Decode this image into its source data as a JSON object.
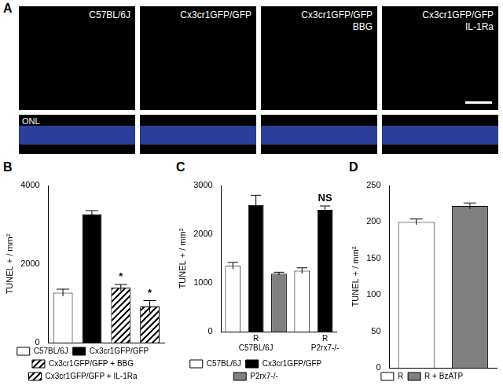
{
  "images": {
    "title": "A",
    "panels": [
      {
        "label": "C57BL/6J"
      },
      {
        "label": "Cx3cr1GFP/GFP"
      },
      {
        "label": "Cx3cr1GFP/GFP",
        "sublabel": "BBG"
      },
      {
        "label": "Cx3cr1GFP/GFP",
        "sublabel": "IL-1Ra"
      }
    ],
    "strip_label": "ONL"
  },
  "chart_data": [
    {
      "type": "bar",
      "title": "B",
      "y_label": "TUNEL + / mm²",
      "categories": [
        null,
        null,
        null,
        null
      ],
      "series": [
        {
          "name": "C57BL/6J",
          "color": "#ffffff",
          "values": [
            1270,
            null,
            null,
            null
          ],
          "errors": [
            90,
            null,
            null,
            null
          ]
        },
        {
          "name": "Cx3cr1GFP/GFP",
          "color": "#000000",
          "values": [
            null,
            3270,
            null,
            null
          ],
          "errors": [
            null,
            90,
            null,
            null
          ]
        },
        {
          "name": "Cx3cr1GFP/GFP + BBG",
          "color": "#000000",
          "marker": "hatch",
          "values": [
            null,
            null,
            1400,
            null
          ],
          "errors": [
            null,
            null,
            80,
            null
          ]
        },
        {
          "name": "Cx3cr1GFP/GFP + IL-1Ra",
          "color": "#000000",
          "marker": "hatch",
          "values": [
            null,
            null,
            null,
            920
          ],
          "errors": [
            null,
            null,
            null,
            150
          ]
        }
      ],
      "annotations": [
        null,
        null,
        "*",
        "*"
      ],
      "ylim": [
        0,
        4000
      ],
      "yticks": [
        0,
        2000,
        4000
      ],
      "grid": false,
      "legend": "bottom",
      "tick_labels": "y"
    },
    {
      "type": "bar",
      "title": "C",
      "y_label": "TUNEL + / mm²",
      "categories": [
        null,
        [
          "R",
          "C57BL/6J"
        ],
        null,
        null,
        [
          "R",
          "P2rx7-/-"
        ]
      ],
      "series": [
        {
          "name": "C57BL/6J",
          "color": "#ffffff",
          "values": [
            1350,
            null,
            null,
            1250,
            null
          ],
          "errors": [
            70,
            null,
            null,
            60,
            null
          ]
        },
        {
          "name": "Cx3cr1GFP/GFP",
          "color": "#000000",
          "values": [
            null,
            2600,
            null,
            null,
            2500
          ],
          "errors": [
            null,
            200,
            null,
            null,
            80
          ]
        },
        {
          "name": "P2rx7-/-",
          "color": "#808080",
          "values": [
            null,
            null,
            1190,
            null,
            null
          ],
          "errors": [
            null,
            null,
            30,
            null,
            null
          ]
        }
      ],
      "annotations": [
        null,
        null,
        null,
        null,
        "NS"
      ],
      "ylim": [
        0,
        3000
      ],
      "yticks": [
        0,
        1000,
        2000,
        3000
      ],
      "grid": false,
      "legend": "bottom"
    },
    {
      "type": "bar",
      "title": "D",
      "y_label": "TUNEL + / mm²",
      "categories": [
        null,
        null
      ],
      "series": [
        {
          "name": "R",
          "color": "#ffffff",
          "values": [
            200,
            null
          ],
          "errors": [
            4,
            null
          ]
        },
        {
          "name": "R + BzATP",
          "color": "#808080",
          "values": [
            null,
            222
          ],
          "errors": [
            null,
            4
          ]
        }
      ],
      "ylim": [
        0,
        250
      ],
      "yticks": [
        0,
        50,
        100,
        150,
        200,
        250
      ],
      "grid": false,
      "legend": "bottom",
      "tick_labels": "y"
    }
  ]
}
